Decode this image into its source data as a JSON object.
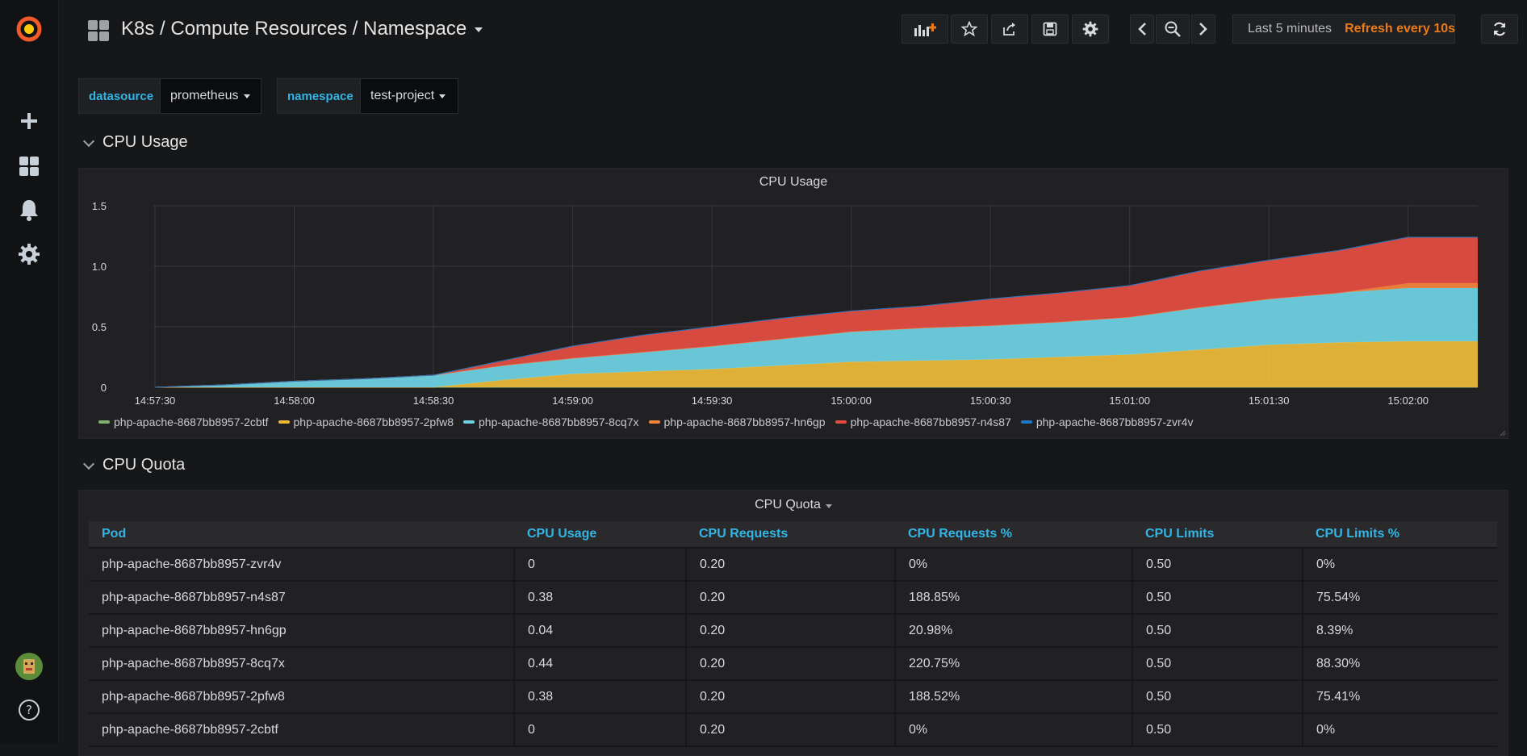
{
  "header": {
    "title": "K8s / Compute Resources / Namespace",
    "time_range": "Last 5 minutes",
    "refresh": "Refresh every 10s"
  },
  "variables": [
    {
      "label": "datasource",
      "value": "prometheus"
    },
    {
      "label": "namespace",
      "value": "test-project"
    }
  ],
  "rows": {
    "cpu_usage": "CPU Usage",
    "cpu_quota": "CPU Quota"
  },
  "cpu_usage_panel": {
    "title": "CPU Usage"
  },
  "cpu_quota_panel": {
    "title": "CPU Quota"
  },
  "chart_data": {
    "type": "area",
    "stacked": true,
    "title": "CPU Usage",
    "x": [
      "14:57:30",
      "14:57:45",
      "14:58:00",
      "14:58:15",
      "14:58:30",
      "14:58:45",
      "14:59:00",
      "14:59:15",
      "14:59:30",
      "14:59:45",
      "15:00:00",
      "15:00:15",
      "15:00:30",
      "15:00:45",
      "15:01:00",
      "15:01:15",
      "15:01:30",
      "15:01:45",
      "15:02:00",
      "15:02:15"
    ],
    "x_ticks": [
      "14:57:30",
      "14:58:00",
      "14:58:30",
      "14:59:00",
      "14:59:30",
      "15:00:00",
      "15:00:30",
      "15:01:00",
      "15:01:30",
      "15:02:00"
    ],
    "y_ticks": [
      "0",
      "0.5",
      "1.0",
      "1.5"
    ],
    "ylim": [
      0,
      1.5
    ],
    "grid": true,
    "legend_position": "bottom",
    "series": [
      {
        "name": "php-apache-8687bb8957-2cbtf",
        "color": "#7eb26d",
        "values": [
          0,
          0,
          0,
          0,
          0,
          0,
          0,
          0,
          0,
          0,
          0,
          0,
          0,
          0,
          0,
          0,
          0,
          0,
          0,
          0
        ]
      },
      {
        "name": "php-apache-8687bb8957-2pfw8",
        "color": "#eab839",
        "values": [
          0,
          0,
          0,
          0,
          0,
          0.06,
          0.11,
          0.13,
          0.15,
          0.18,
          0.21,
          0.22,
          0.23,
          0.25,
          0.27,
          0.31,
          0.35,
          0.37,
          0.38,
          0.38
        ]
      },
      {
        "name": "php-apache-8687bb8957-8cq7x",
        "color": "#6ed0e0",
        "values": [
          0,
          0.02,
          0.05,
          0.07,
          0.1,
          0.12,
          0.13,
          0.16,
          0.19,
          0.22,
          0.25,
          0.27,
          0.28,
          0.29,
          0.31,
          0.35,
          0.38,
          0.41,
          0.44,
          0.44
        ]
      },
      {
        "name": "php-apache-8687bb8957-hn6gp",
        "color": "#ef843c",
        "values": [
          0,
          0,
          0,
          0,
          0,
          0,
          0,
          0,
          0,
          0,
          0,
          0,
          0,
          0,
          0,
          0,
          0,
          0,
          0.04,
          0.04
        ]
      },
      {
        "name": "php-apache-8687bb8957-n4s87",
        "color": "#e24d42",
        "values": [
          0,
          0,
          0,
          0,
          0,
          0.04,
          0.1,
          0.14,
          0.16,
          0.17,
          0.17,
          0.18,
          0.22,
          0.24,
          0.26,
          0.3,
          0.32,
          0.35,
          0.38,
          0.38
        ]
      },
      {
        "name": "php-apache-8687bb8957-zvr4v",
        "color": "#1f78c1",
        "values": [
          0,
          0,
          0,
          0,
          0,
          0,
          0,
          0,
          0,
          0,
          0,
          0,
          0,
          0,
          0,
          0,
          0,
          0,
          0,
          0
        ]
      }
    ]
  },
  "quota_table": {
    "columns": [
      "Pod",
      "CPU Usage",
      "CPU Requests",
      "CPU Requests %",
      "CPU Limits",
      "CPU Limits %"
    ],
    "rows": [
      [
        "php-apache-8687bb8957-zvr4v",
        "0",
        "0.20",
        "0%",
        "0.50",
        "0%"
      ],
      [
        "php-apache-8687bb8957-n4s87",
        "0.38",
        "0.20",
        "188.85%",
        "0.50",
        "75.54%"
      ],
      [
        "php-apache-8687bb8957-hn6gp",
        "0.04",
        "0.20",
        "20.98%",
        "0.50",
        "8.39%"
      ],
      [
        "php-apache-8687bb8957-8cq7x",
        "0.44",
        "0.20",
        "220.75%",
        "0.50",
        "88.30%"
      ],
      [
        "php-apache-8687bb8957-2pfw8",
        "0.38",
        "0.20",
        "188.52%",
        "0.50",
        "75.41%"
      ],
      [
        "php-apache-8687bb8957-2cbtf",
        "0",
        "0.20",
        "0%",
        "0.50",
        "0%"
      ]
    ]
  },
  "icons": {
    "logo": "grafana-logo-icon",
    "create": "plus-icon",
    "dashboards": "dashboards-grid-icon",
    "alerting": "bell-icon",
    "configuration": "gear-icon",
    "profile": "user-avatar",
    "help": "question-circle-icon"
  },
  "colors": {
    "accent_blue": "#33b5e5",
    "refresh_orange": "#eb7b18",
    "background": "#161719",
    "panel": "#212124"
  }
}
